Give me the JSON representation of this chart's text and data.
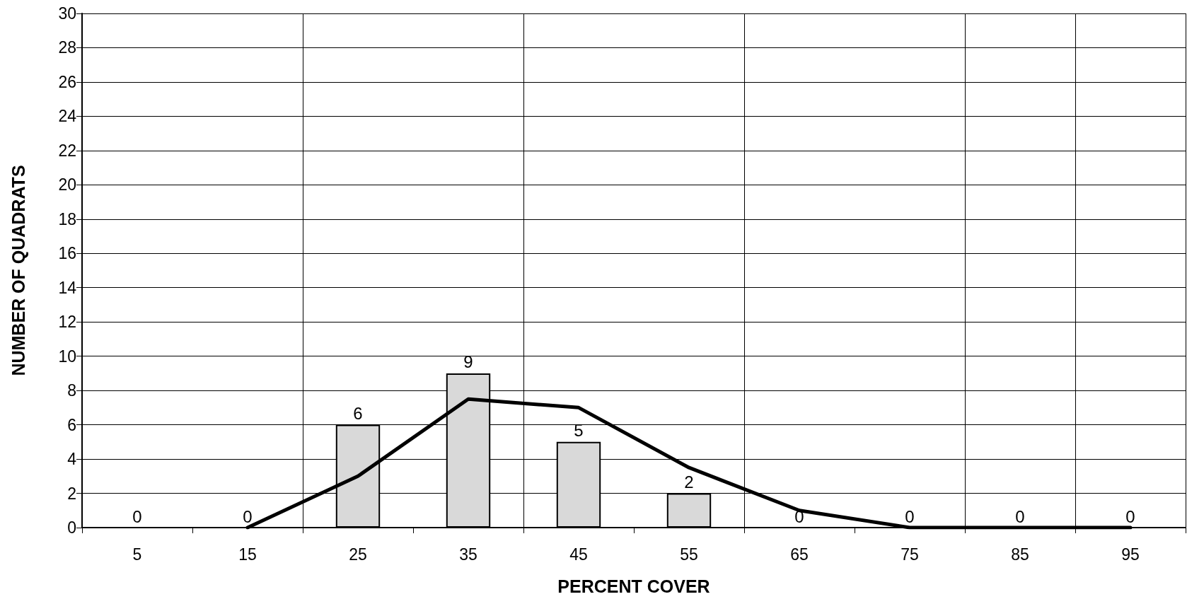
{
  "chart_data": {
    "type": "bar",
    "xlabel": "PERCENT COVER",
    "ylabel": "NUMBER OF QUADRATS",
    "categories": [
      "5",
      "15",
      "25",
      "35",
      "45",
      "55",
      "65",
      "75",
      "85",
      "95"
    ],
    "series": [
      {
        "color": "#d9d9d9",
        "data_labels": true,
        "values": [
          0,
          0,
          6,
          9,
          5,
          2,
          0,
          0,
          0,
          0
        ]
      },
      {
        "type": "line",
        "color": "#000000",
        "marker": "none",
        "values": [
          null,
          0,
          3,
          7.5,
          7,
          3.5,
          1,
          0,
          0,
          0
        ]
      }
    ],
    "ylim": [
      0,
      30
    ],
    "yticks": [
      0,
      2,
      4,
      6,
      8,
      10,
      12,
      14,
      16,
      18,
      20,
      22,
      24,
      26,
      28,
      30
    ],
    "grid": true
  }
}
